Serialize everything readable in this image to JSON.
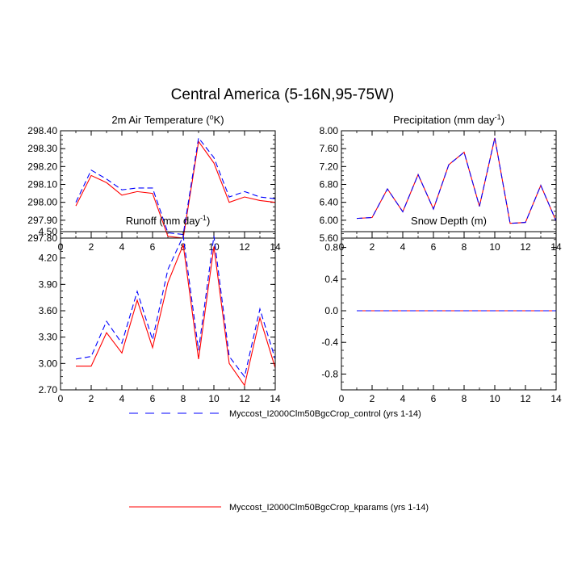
{
  "title": "Central America (5-16N,95-75W)",
  "colors": {
    "control": "#0000ff",
    "kparams": "#ff0000",
    "axis": "#000000"
  },
  "legend": [
    {
      "label": "Myccost_I2000Clm50BgcCrop_control (yrs 1-14)",
      "style": "dashed",
      "color": "#0000ff"
    },
    {
      "label": "Myccost_I2000Clm50BgcCrop_kparams (yrs 1-14)",
      "style": "solid",
      "color": "#ff0000"
    }
  ],
  "chart_data": [
    {
      "type": "line",
      "title": "2m Air Temperature (",
      "title_sup": "o",
      "title_end": "K)",
      "xlim": [
        0,
        14
      ],
      "ylim": [
        297.8,
        298.4
      ],
      "xticks": [
        0,
        2,
        4,
        6,
        8,
        10,
        12,
        14
      ],
      "yticks": [
        "297.80",
        "297.90",
        "298.00",
        "298.10",
        "298.20",
        "298.30",
        "298.40"
      ],
      "x": [
        1,
        2,
        3,
        4,
        5,
        6,
        7,
        8,
        9,
        10,
        11,
        12,
        13,
        14
      ],
      "series": [
        {
          "name": "control",
          "values": [
            298.0,
            298.18,
            298.13,
            298.07,
            298.08,
            298.08,
            297.83,
            297.82,
            298.36,
            298.25,
            298.03,
            298.06,
            298.03,
            298.02
          ]
        },
        {
          "name": "kparams",
          "values": [
            297.98,
            298.15,
            298.11,
            298.04,
            298.06,
            298.05,
            297.81,
            297.8,
            298.34,
            298.22,
            298.0,
            298.03,
            298.01,
            298.0
          ]
        }
      ]
    },
    {
      "type": "line",
      "title": "Precipitation (mm day",
      "title_sup": "-1",
      "title_end": ")",
      "xlim": [
        0,
        14
      ],
      "ylim": [
        5.6,
        8.0
      ],
      "xticks": [
        0,
        2,
        4,
        6,
        8,
        10,
        12,
        14
      ],
      "yticks": [
        "5.60",
        "6.00",
        "6.40",
        "6.80",
        "7.20",
        "7.60",
        "8.00"
      ],
      "x": [
        1,
        2,
        3,
        4,
        5,
        6,
        7,
        8,
        9,
        10,
        11,
        12,
        13,
        14
      ],
      "series": [
        {
          "name": "control",
          "values": [
            6.04,
            6.06,
            6.7,
            6.19,
            7.02,
            6.25,
            7.24,
            7.52,
            6.31,
            7.84,
            5.93,
            5.95,
            6.78,
            5.98
          ]
        },
        {
          "name": "kparams",
          "values": [
            6.04,
            6.06,
            6.7,
            6.19,
            7.02,
            6.25,
            7.24,
            7.52,
            6.31,
            7.84,
            5.93,
            5.95,
            6.78,
            5.98
          ]
        }
      ]
    },
    {
      "type": "line",
      "title": "Runoff (mm day",
      "title_sup": "-1",
      "title_end": ")",
      "xlim": [
        0,
        14
      ],
      "ylim": [
        2.7,
        4.5
      ],
      "xticks": [
        0,
        2,
        4,
        6,
        8,
        10,
        12,
        14
      ],
      "yticks": [
        "2.70",
        "3.00",
        "3.30",
        "3.60",
        "3.90",
        "4.20",
        "4.50"
      ],
      "x": [
        1,
        2,
        3,
        4,
        5,
        6,
        7,
        8,
        9,
        10,
        11,
        12,
        13,
        14
      ],
      "series": [
        {
          "name": "control",
          "values": [
            3.05,
            3.08,
            3.48,
            3.23,
            3.82,
            3.27,
            4.07,
            4.45,
            3.15,
            4.45,
            3.08,
            2.85,
            3.62,
            3.05
          ]
        },
        {
          "name": "kparams",
          "values": [
            2.97,
            2.97,
            3.35,
            3.12,
            3.72,
            3.18,
            3.92,
            4.35,
            3.05,
            4.33,
            3.0,
            2.75,
            3.52,
            2.95
          ]
        }
      ]
    },
    {
      "type": "line",
      "title": "Snow Depth (m)",
      "title_sup": "",
      "title_end": "",
      "xlim": [
        0,
        14
      ],
      "ylim": [
        -1.0,
        1.0
      ],
      "xticks": [
        0,
        2,
        4,
        6,
        8,
        10,
        12,
        14
      ],
      "yticks": [
        "-0.8",
        "-0.4",
        "0.0",
        "0.4",
        "0.8"
      ],
      "ytick_values": [
        -0.8,
        -0.4,
        0.0,
        0.4,
        0.8
      ],
      "x": [
        1,
        2,
        3,
        4,
        5,
        6,
        7,
        8,
        9,
        10,
        11,
        12,
        13,
        14
      ],
      "series": [
        {
          "name": "control",
          "values": [
            0,
            0,
            0,
            0,
            0,
            0,
            0,
            0,
            0,
            0,
            0,
            0,
            0,
            0
          ]
        },
        {
          "name": "kparams",
          "values": [
            0,
            0,
            0,
            0,
            0,
            0,
            0,
            0,
            0,
            0,
            0,
            0,
            0,
            0
          ]
        }
      ]
    }
  ]
}
